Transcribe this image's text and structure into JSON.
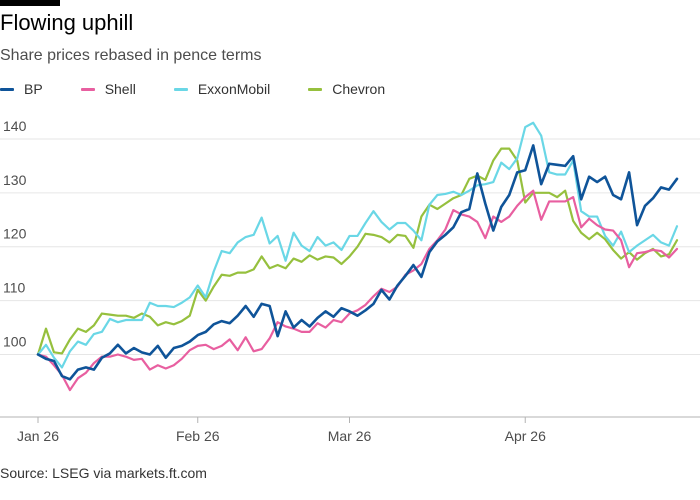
{
  "title": "Flowing uphill",
  "subtitle": "Share prices rebased in pence terms",
  "source": "Source: LSEG via markets.ft.com",
  "colors": {
    "background": "#ffffff",
    "grid": "#e6e6e6",
    "baseline": "#b3b3b3"
  },
  "chart_data": {
    "type": "line",
    "title": "Flowing uphill",
    "subtitle": "Share prices rebased in pence terms",
    "xlabel": "",
    "ylabel": "",
    "ylim": [
      91,
      145
    ],
    "yticks": [
      100,
      110,
      120,
      130,
      140
    ],
    "xticks": [
      {
        "label": "Jan 26",
        "index": 0
      },
      {
        "label": "Feb 26",
        "index": 20
      },
      {
        "label": "Mar 26",
        "index": 39
      },
      {
        "label": "Apr 26",
        "index": 61
      }
    ],
    "grid": true,
    "legend_position": "top-left",
    "x_count": 81,
    "series": [
      {
        "name": "BP",
        "color": "#0f5499",
        "values": [
          100.0,
          99.2,
          98.8,
          96.0,
          95.4,
          97.2,
          97.6,
          97.2,
          99.4,
          100.2,
          101.8,
          100.2,
          101.2,
          100.4,
          100.0,
          101.6,
          99.4,
          101.2,
          101.6,
          102.4,
          103.6,
          104.2,
          105.6,
          106.2,
          105.8,
          107.2,
          109.0,
          107.0,
          109.4,
          109.0,
          103.4,
          108.0,
          105.0,
          106.4,
          105.2,
          106.8,
          108.0,
          107.0,
          108.6,
          108.0,
          107.2,
          108.2,
          109.4,
          112.0,
          110.2,
          112.8,
          114.6,
          116.6,
          114.4,
          119.0,
          121.0,
          122.2,
          123.6,
          126.4,
          127.0,
          133.6,
          128.0,
          123.0,
          127.4,
          129.6,
          133.8,
          134.2,
          138.8,
          131.6,
          135.4,
          135.2,
          135.0,
          136.8,
          128.8,
          133.0,
          132.0,
          133.0,
          129.6,
          128.8,
          133.8,
          124.0,
          127.6,
          129.0,
          131.0,
          130.6,
          132.6
        ]
      },
      {
        "name": "Shell",
        "color": "#e85fa0",
        "values": [
          100.0,
          99.6,
          98.0,
          96.2,
          93.4,
          95.6,
          96.6,
          98.4,
          99.6,
          99.6,
          100.0,
          99.6,
          99.0,
          99.2,
          97.2,
          98.0,
          97.4,
          98.0,
          99.2,
          100.8,
          101.6,
          101.8,
          101.0,
          101.6,
          102.8,
          100.8,
          103.2,
          100.6,
          101.0,
          103.0,
          106.0,
          105.2,
          104.8,
          104.2,
          104.2,
          105.8,
          105.0,
          106.4,
          106.0,
          107.6,
          108.2,
          109.2,
          110.8,
          112.2,
          111.6,
          112.6,
          114.8,
          115.6,
          116.8,
          119.6,
          121.2,
          123.2,
          126.8,
          126.0,
          125.6,
          124.6,
          121.6,
          125.6,
          124.6,
          125.6,
          127.6,
          129.2,
          130.4,
          125.0,
          128.4,
          128.4,
          128.4,
          129.2,
          123.6,
          125.2,
          124.0,
          123.2,
          123.0,
          121.2,
          116.2,
          118.8,
          119.0,
          119.4,
          119.2,
          118.0,
          119.6
        ]
      },
      {
        "name": "ExxonMobil",
        "color": "#6ad7e6",
        "values": [
          100.0,
          101.8,
          99.4,
          97.6,
          100.6,
          102.4,
          101.8,
          103.8,
          104.2,
          106.6,
          106.0,
          106.4,
          106.4,
          106.4,
          109.6,
          109.0,
          109.0,
          108.8,
          109.6,
          110.6,
          112.8,
          110.6,
          115.4,
          119.2,
          118.8,
          120.8,
          121.8,
          122.2,
          125.4,
          120.6,
          122.0,
          117.4,
          122.6,
          120.2,
          119.2,
          121.8,
          120.2,
          120.8,
          119.4,
          122.0,
          122.0,
          124.4,
          126.6,
          124.6,
          123.2,
          124.4,
          124.4,
          123.0,
          121.2,
          127.8,
          129.6,
          129.8,
          130.2,
          129.6,
          130.4,
          131.4,
          131.6,
          132.0,
          135.6,
          134.4,
          136.4,
          142.2,
          143.0,
          140.6,
          133.8,
          133.4,
          133.4,
          136.0,
          126.6,
          125.6,
          125.6,
          122.0,
          120.2,
          122.8,
          119.0,
          120.2,
          121.2,
          122.2,
          120.8,
          120.2,
          123.8
        ]
      },
      {
        "name": "Chevron",
        "color": "#96c03e",
        "values": [
          100.0,
          104.8,
          100.4,
          100.2,
          102.8,
          104.8,
          104.2,
          105.4,
          107.6,
          107.4,
          107.2,
          107.2,
          106.8,
          107.6,
          107.0,
          105.4,
          106.0,
          105.6,
          106.2,
          107.2,
          112.0,
          110.0,
          112.6,
          114.8,
          114.6,
          115.2,
          115.2,
          115.8,
          118.2,
          116.0,
          116.6,
          116.0,
          117.8,
          117.2,
          118.4,
          117.6,
          118.2,
          118.0,
          116.8,
          118.2,
          120.0,
          122.4,
          122.2,
          121.8,
          120.8,
          122.2,
          122.0,
          119.8,
          125.6,
          127.8,
          127.0,
          128.0,
          129.0,
          129.6,
          132.6,
          133.2,
          132.4,
          136.0,
          138.2,
          138.2,
          136.0,
          128.2,
          130.0,
          130.0,
          130.0,
          129.2,
          130.4,
          124.8,
          122.6,
          121.4,
          122.6,
          121.4,
          119.4,
          117.8,
          119.0,
          117.6,
          118.8,
          119.6,
          118.2,
          118.6,
          121.2
        ]
      }
    ]
  }
}
